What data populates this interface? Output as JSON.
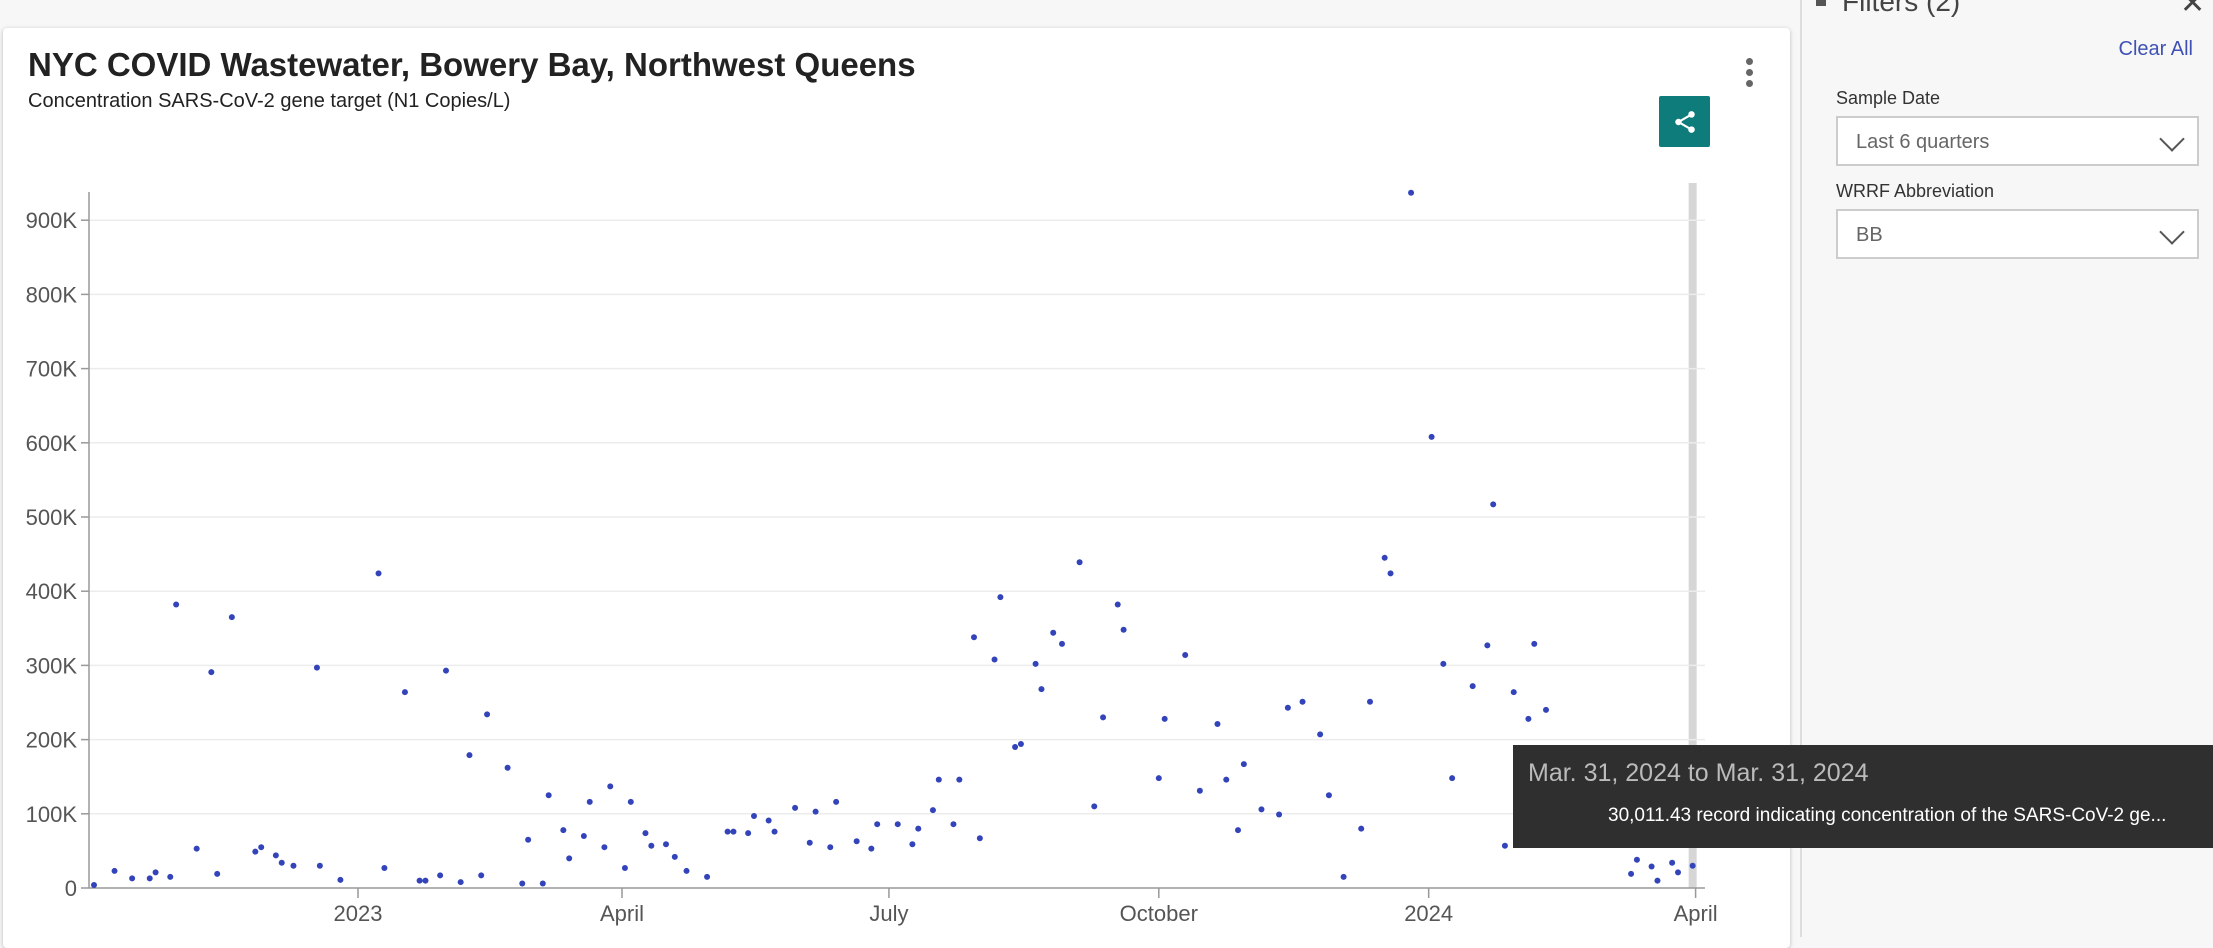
{
  "card": {
    "title": "NYC COVID Wastewater, Bowery Bay, Northwest Queens",
    "subtitle": "Concentration SARS-CoV-2 gene target (N1 Copies/L)",
    "menu_icon": "kebab-vertical-icon",
    "share_icon": "share-icon",
    "share_color": "#0e7c7b"
  },
  "filters": {
    "title": "Filters (2)",
    "clear_all": "Clear All",
    "accent": "#3f51b5",
    "sample_date": {
      "label": "Sample Date",
      "value": "Last 6 quarters"
    },
    "wrrf": {
      "label": "WRRF Abbreviation",
      "value": "BB"
    }
  },
  "tooltip": {
    "range": "Mar. 31, 2024 to Mar. 31, 2024",
    "detail": "30,011.43 record indicating concentration of the SARS-CoV-2 ge..."
  },
  "chart_data": {
    "type": "scatter",
    "title": "NYC COVID Wastewater, Bowery Bay, Northwest Queens",
    "ylabel": "",
    "xlabel": "",
    "xlim": [
      "2022-10-01",
      "2024-04-06"
    ],
    "ylim": [
      0,
      950000
    ],
    "grid": true,
    "point_color": "#3344bb",
    "x_ticks": [
      {
        "date": "2023-01-01",
        "label": "2023"
      },
      {
        "date": "2023-04-01",
        "label": "April"
      },
      {
        "date": "2023-07-01",
        "label": "July"
      },
      {
        "date": "2023-10-01",
        "label": "October"
      },
      {
        "date": "2024-01-01",
        "label": "2024"
      },
      {
        "date": "2024-04-01",
        "label": "April"
      }
    ],
    "y_ticks": [
      {
        "value": 0,
        "label": "0"
      },
      {
        "value": 100000,
        "label": "100K"
      },
      {
        "value": 200000,
        "label": "200K"
      },
      {
        "value": 300000,
        "label": "300K"
      },
      {
        "value": 400000,
        "label": "400K"
      },
      {
        "value": 500000,
        "label": "500K"
      },
      {
        "value": 600000,
        "label": "600K"
      },
      {
        "value": 700000,
        "label": "700K"
      },
      {
        "value": 800000,
        "label": "800K"
      },
      {
        "value": 900000,
        "label": "900K"
      }
    ],
    "hover_date": "2024-03-31",
    "points": [
      [
        "2022-10-03",
        4000
      ],
      [
        "2022-10-10",
        23000
      ],
      [
        "2022-10-16",
        13000
      ],
      [
        "2022-10-22",
        13000
      ],
      [
        "2022-10-24",
        21000
      ],
      [
        "2022-10-29",
        15000
      ],
      [
        "2022-10-31",
        382000
      ],
      [
        "2022-11-07",
        53000
      ],
      [
        "2022-11-12",
        291000
      ],
      [
        "2022-11-14",
        19000
      ],
      [
        "2022-11-19",
        365000
      ],
      [
        "2022-11-27",
        49000
      ],
      [
        "2022-11-29",
        55000
      ],
      [
        "2022-12-04",
        44000
      ],
      [
        "2022-12-06",
        34000
      ],
      [
        "2022-12-10",
        30000
      ],
      [
        "2022-12-18",
        297000
      ],
      [
        "2022-12-19",
        30000
      ],
      [
        "2022-12-26",
        11000
      ],
      [
        "2023-01-08",
        424000
      ],
      [
        "2023-01-10",
        27000
      ],
      [
        "2023-01-17",
        264000
      ],
      [
        "2023-01-22",
        10000
      ],
      [
        "2023-01-24",
        10000
      ],
      [
        "2023-01-29",
        17000
      ],
      [
        "2023-01-31",
        293000
      ],
      [
        "2023-02-05",
        8000
      ],
      [
        "2023-02-08",
        179000
      ],
      [
        "2023-02-12",
        17000
      ],
      [
        "2023-02-14",
        234000
      ],
      [
        "2023-02-21",
        162000
      ],
      [
        "2023-02-26",
        6000
      ],
      [
        "2023-02-28",
        65000
      ],
      [
        "2023-03-05",
        6000
      ],
      [
        "2023-03-07",
        125000
      ],
      [
        "2023-03-12",
        78000
      ],
      [
        "2023-03-14",
        40000
      ],
      [
        "2023-03-19",
        70000
      ],
      [
        "2023-03-21",
        116000
      ],
      [
        "2023-03-26",
        55000
      ],
      [
        "2023-03-28",
        137000
      ],
      [
        "2023-04-02",
        27000
      ],
      [
        "2023-04-04",
        116000
      ],
      [
        "2023-04-09",
        74000
      ],
      [
        "2023-04-11",
        57000
      ],
      [
        "2023-04-16",
        59000
      ],
      [
        "2023-04-19",
        42000
      ],
      [
        "2023-04-23",
        23000
      ],
      [
        "2023-04-30",
        15000
      ],
      [
        "2023-05-07",
        76000
      ],
      [
        "2023-05-09",
        76000
      ],
      [
        "2023-05-14",
        74000
      ],
      [
        "2023-05-16",
        97000
      ],
      [
        "2023-05-21",
        91000
      ],
      [
        "2023-05-23",
        76000
      ],
      [
        "2023-05-30",
        108000
      ],
      [
        "2023-06-04",
        61000
      ],
      [
        "2023-06-06",
        103000
      ],
      [
        "2023-06-11",
        55000
      ],
      [
        "2023-06-13",
        116000
      ],
      [
        "2023-06-20",
        63000
      ],
      [
        "2023-06-25",
        53000
      ],
      [
        "2023-06-27",
        86000
      ],
      [
        "2023-07-04",
        86000
      ],
      [
        "2023-07-09",
        59000
      ],
      [
        "2023-07-11",
        80000
      ],
      [
        "2023-07-16",
        105000
      ],
      [
        "2023-07-18",
        146000
      ],
      [
        "2023-07-23",
        86000
      ],
      [
        "2023-07-25",
        146000
      ],
      [
        "2023-07-30",
        338000
      ],
      [
        "2023-08-01",
        67000
      ],
      [
        "2023-08-06",
        308000
      ],
      [
        "2023-08-08",
        392000
      ],
      [
        "2023-08-13",
        190000
      ],
      [
        "2023-08-15",
        194000
      ],
      [
        "2023-08-20",
        302000
      ],
      [
        "2023-08-22",
        268000
      ],
      [
        "2023-08-26",
        344000
      ],
      [
        "2023-08-29",
        329000
      ],
      [
        "2023-09-04",
        439000
      ],
      [
        "2023-09-09",
        110000
      ],
      [
        "2023-09-12",
        230000
      ],
      [
        "2023-09-17",
        382000
      ],
      [
        "2023-09-19",
        348000
      ],
      [
        "2023-10-01",
        148000
      ],
      [
        "2023-10-03",
        228000
      ],
      [
        "2023-10-10",
        314000
      ],
      [
        "2023-10-15",
        131000
      ],
      [
        "2023-10-21",
        221000
      ],
      [
        "2023-10-24",
        146000
      ],
      [
        "2023-10-28",
        78000
      ],
      [
        "2023-10-30",
        167000
      ],
      [
        "2023-11-05",
        106000
      ],
      [
        "2023-11-11",
        99000
      ],
      [
        "2023-11-14",
        243000
      ],
      [
        "2023-11-19",
        251000
      ],
      [
        "2023-11-25",
        207000
      ],
      [
        "2023-11-28",
        125000
      ],
      [
        "2023-12-03",
        15000
      ],
      [
        "2023-12-09",
        80000
      ],
      [
        "2023-12-12",
        251000
      ],
      [
        "2023-12-17",
        445000
      ],
      [
        "2023-12-19",
        424000
      ],
      [
        "2023-12-26",
        937000
      ],
      [
        "2024-01-02",
        608000
      ],
      [
        "2024-01-06",
        302000
      ],
      [
        "2024-01-09",
        148000
      ],
      [
        "2024-01-16",
        272000
      ],
      [
        "2024-01-21",
        327000
      ],
      [
        "2024-01-23",
        517000
      ],
      [
        "2024-01-27",
        57000
      ],
      [
        "2024-01-30",
        264000
      ],
      [
        "2024-02-04",
        228000
      ],
      [
        "2024-02-06",
        329000
      ],
      [
        "2024-02-10",
        240000
      ],
      [
        "2024-03-10",
        19000
      ],
      [
        "2024-03-12",
        38000
      ],
      [
        "2024-03-17",
        29000
      ],
      [
        "2024-03-19",
        10000
      ],
      [
        "2024-03-24",
        34000
      ],
      [
        "2024-03-26",
        21000
      ],
      [
        "2024-03-31",
        30011.43
      ]
    ]
  }
}
